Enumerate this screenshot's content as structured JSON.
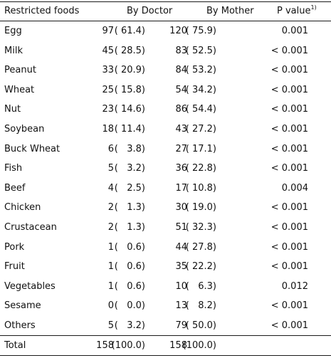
{
  "headers": {
    "food": "Restricted foods",
    "doctor": "By Doctor",
    "mother": "By Mother",
    "p_value": "P value",
    "p_note": "1)"
  },
  "rows": [
    {
      "food": "Egg",
      "doc_n": "97",
      "doc_pct": "( 61.4)",
      "mom_n": "120",
      "mom_pct": "( 75.9)",
      "p": "0.001"
    },
    {
      "food": "Milk",
      "doc_n": "45",
      "doc_pct": "( 28.5)",
      "mom_n": "83",
      "mom_pct": "( 52.5)",
      "p": "< 0.001"
    },
    {
      "food": "Peanut",
      "doc_n": "33",
      "doc_pct": "( 20.9)",
      "mom_n": "84",
      "mom_pct": "( 53.2)",
      "p": "< 0.001"
    },
    {
      "food": "Wheat",
      "doc_n": "25",
      "doc_pct": "( 15.8)",
      "mom_n": "54",
      "mom_pct": "( 34.2)",
      "p": "< 0.001"
    },
    {
      "food": "Nut",
      "doc_n": "23",
      "doc_pct": "( 14.6)",
      "mom_n": "86",
      "mom_pct": "( 54.4)",
      "p": "< 0.001"
    },
    {
      "food": "Soybean",
      "doc_n": "18",
      "doc_pct": "( 11.4)",
      "mom_n": "43",
      "mom_pct": "( 27.2)",
      "p": "< 0.001"
    },
    {
      "food": "Buck Wheat",
      "doc_n": "6",
      "doc_pct": "(   3.8)",
      "mom_n": "27",
      "mom_pct": "( 17.1)",
      "p": "< 0.001"
    },
    {
      "food": "Fish",
      "doc_n": "5",
      "doc_pct": "(   3.2)",
      "mom_n": "36",
      "mom_pct": "( 22.8)",
      "p": "< 0.001"
    },
    {
      "food": "Beef",
      "doc_n": "4",
      "doc_pct": "(   2.5)",
      "mom_n": "17",
      "mom_pct": "( 10.8)",
      "p": "0.004"
    },
    {
      "food": "Chicken",
      "doc_n": "2",
      "doc_pct": "(   1.3)",
      "mom_n": "30",
      "mom_pct": "( 19.0)",
      "p": "< 0.001"
    },
    {
      "food": "Crustacean",
      "doc_n": "2",
      "doc_pct": "(   1.3)",
      "mom_n": "51",
      "mom_pct": "( 32.3)",
      "p": "< 0.001"
    },
    {
      "food": "Pork",
      "doc_n": "1",
      "doc_pct": "(   0.6)",
      "mom_n": "44",
      "mom_pct": "( 27.8)",
      "p": "< 0.001"
    },
    {
      "food": "Fruit",
      "doc_n": "1",
      "doc_pct": "(   0.6)",
      "mom_n": "35",
      "mom_pct": "( 22.2)",
      "p": "< 0.001"
    },
    {
      "food": "Vegetables",
      "doc_n": "1",
      "doc_pct": "(   0.6)",
      "mom_n": "10",
      "mom_pct": "(   6.3)",
      "p": "0.012"
    },
    {
      "food": "Sesame",
      "doc_n": "0",
      "doc_pct": "(   0.0)",
      "mom_n": "13",
      "mom_pct": "(   8.2)",
      "p": "< 0.001"
    },
    {
      "food": "Others",
      "doc_n": "5",
      "doc_pct": "(   3.2)",
      "mom_n": "79",
      "mom_pct": "( 50.0)",
      "p": "< 0.001"
    }
  ],
  "total": {
    "food": "Total",
    "doc_n": "158",
    "doc_pct": "(100.0)",
    "mom_n": "158",
    "mom_pct": "(100.0)",
    "p": ""
  }
}
